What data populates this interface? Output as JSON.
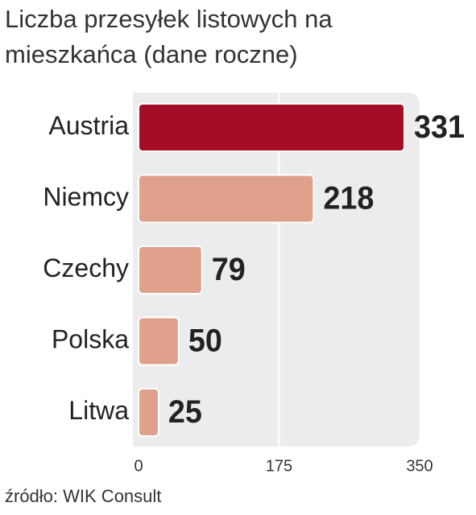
{
  "chart_data": {
    "type": "bar",
    "orientation": "horizontal",
    "title": "Liczba przesyłek listowych na mieszkańca (dane roczne)",
    "categories": [
      "Austria",
      "Niemcy",
      "Czechy",
      "Polska",
      "Litwa"
    ],
    "values": [
      331,
      218,
      79,
      50,
      25
    ],
    "colors": [
      "#a30d26",
      "#dfa08c",
      "#dfa08c",
      "#dfa08c",
      "#dfa08c"
    ],
    "xlim": [
      0,
      350
    ],
    "xticks": [
      0,
      175,
      350
    ],
    "grid": true,
    "source": "źródło: WIK Consult"
  }
}
